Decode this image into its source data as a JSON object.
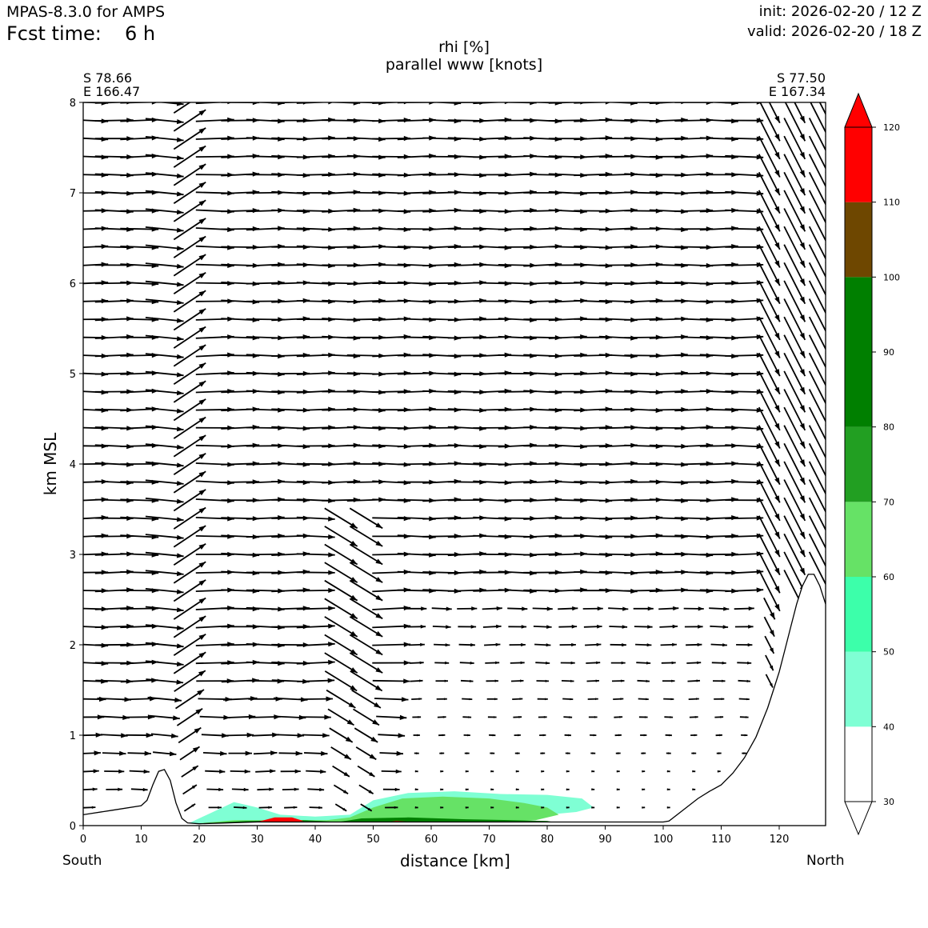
{
  "header": {
    "model": "MPAS-8.3.0 for AMPS",
    "fcst_label": "Fcst time:",
    "fcst_value": "6 h",
    "init": "init: 2026-02-20 / 12 Z",
    "valid": "valid: 2026-02-20 / 18 Z"
  },
  "section": {
    "left_lat": "S 78.66",
    "left_lon": "E 166.47",
    "right_lat": "S 77.50",
    "right_lon": "E 167.34",
    "left_end": "South",
    "right_end": "North"
  },
  "chart_data": {
    "type": "cross-section",
    "title": "rhi [%]",
    "subtitle": "parallel www [knots]",
    "xlabel": "distance [km]",
    "ylabel": "km MSL",
    "xlim": [
      0,
      128
    ],
    "ylim": [
      0,
      8
    ],
    "xticks": [
      0,
      10,
      20,
      30,
      40,
      50,
      60,
      70,
      80,
      90,
      100,
      110,
      120
    ],
    "yticks": [
      0,
      1,
      2,
      3,
      4,
      5,
      6,
      7,
      8
    ],
    "terrain": {
      "x": [
        0,
        5,
        10,
        11,
        12,
        13,
        14,
        15,
        16,
        17,
        18,
        20,
        30,
        40,
        50,
        60,
        70,
        80,
        90,
        100,
        101,
        103,
        106,
        108,
        110,
        112,
        114,
        116,
        118,
        119,
        120,
        121,
        122,
        123,
        124,
        125,
        126,
        127,
        128
      ],
      "y": [
        0.12,
        0.17,
        0.22,
        0.28,
        0.45,
        0.6,
        0.62,
        0.5,
        0.25,
        0.08,
        0.03,
        0.02,
        0.04,
        0.04,
        0.04,
        0.04,
        0.04,
        0.04,
        0.04,
        0.04,
        0.05,
        0.15,
        0.3,
        0.38,
        0.45,
        0.58,
        0.75,
        0.98,
        1.3,
        1.5,
        1.7,
        1.95,
        2.2,
        2.45,
        2.65,
        2.78,
        2.78,
        2.65,
        2.45
      ]
    },
    "colorbar": {
      "levels": [
        30,
        40,
        50,
        60,
        70,
        80,
        90,
        100,
        110,
        120
      ],
      "ticks": [
        30,
        40,
        50,
        60,
        70,
        80,
        90,
        100,
        110,
        120
      ],
      "colors": [
        "#ffffff",
        "#7fffd4",
        "#3cffaa",
        "#66e266",
        "#229f22",
        "#007f00",
        "#007f00",
        "#6e4700",
        "#ff0000"
      ],
      "extend": "both"
    },
    "rhi_regions": [
      {
        "level": 40,
        "x": [
          18,
          22,
          26,
          30,
          34,
          40,
          46,
          50,
          56,
          64,
          72,
          80,
          86,
          88,
          85,
          80,
          72,
          62,
          52,
          46,
          40,
          30,
          22,
          18
        ],
        "y": [
          0.02,
          0.14,
          0.26,
          0.2,
          0.12,
          0.1,
          0.12,
          0.28,
          0.36,
          0.38,
          0.35,
          0.34,
          0.3,
          0.2,
          0.15,
          0.12,
          0.1,
          0.08,
          0.06,
          0.05,
          0.04,
          0.03,
          0.02,
          0.02
        ]
      },
      {
        "level": 60,
        "x": [
          19,
          26,
          34,
          42,
          46,
          50,
          55,
          62,
          70,
          76,
          80,
          82,
          78,
          70,
          60,
          50,
          40,
          30,
          20,
          19
        ],
        "y": [
          0.02,
          0.06,
          0.06,
          0.06,
          0.09,
          0.2,
          0.3,
          0.32,
          0.3,
          0.25,
          0.2,
          0.12,
          0.06,
          0.04,
          0.04,
          0.04,
          0.04,
          0.03,
          0.02,
          0.02
        ]
      },
      {
        "level": 80,
        "x": [
          19,
          28,
          38,
          44,
          48,
          56,
          66,
          74,
          80,
          82,
          76,
          66,
          56,
          48,
          38,
          28,
          19
        ],
        "y": [
          0.02,
          0.05,
          0.06,
          0.04,
          0.08,
          0.09,
          0.07,
          0.06,
          0.05,
          0.03,
          0.02,
          0.02,
          0.02,
          0.02,
          0.02,
          0.02,
          0.02
        ]
      },
      {
        "level": 110,
        "x": [
          30,
          33,
          36,
          38,
          36,
          33,
          30
        ],
        "y": [
          0.04,
          0.09,
          0.09,
          0.05,
          0.03,
          0.03,
          0.04
        ]
      },
      {
        "level": 110,
        "x": [
          51,
          54,
          57,
          55,
          52,
          51
        ],
        "y": [
          0.03,
          0.05,
          0.04,
          0.02,
          0.02,
          0.03
        ]
      }
    ]
  }
}
